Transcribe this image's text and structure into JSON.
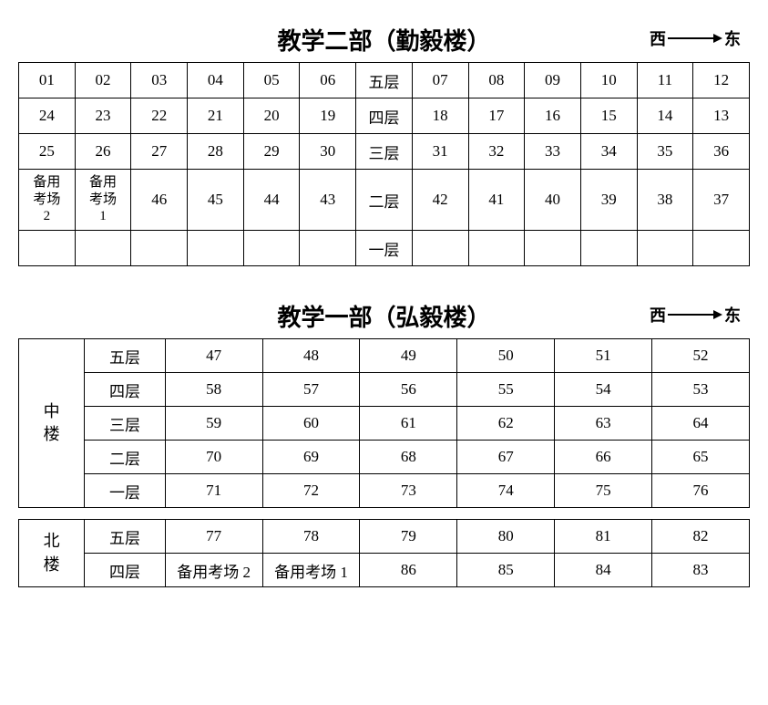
{
  "compass": {
    "west": "西",
    "east": "东"
  },
  "section1": {
    "title": "教学二部（勤毅楼）",
    "rows": [
      [
        "01",
        "02",
        "03",
        "04",
        "05",
        "06",
        "五层",
        "07",
        "08",
        "09",
        "10",
        "11",
        "12"
      ],
      [
        "24",
        "23",
        "22",
        "21",
        "20",
        "19",
        "四层",
        "18",
        "17",
        "16",
        "15",
        "14",
        "13"
      ],
      [
        "25",
        "26",
        "27",
        "28",
        "29",
        "30",
        "三层",
        "31",
        "32",
        "33",
        "34",
        "35",
        "36"
      ],
      [
        "备用考场2",
        "备用考场1",
        "46",
        "45",
        "44",
        "43",
        "二层",
        "42",
        "41",
        "40",
        "39",
        "38",
        "37"
      ],
      [
        "",
        "",
        "",
        "",
        "",
        "",
        "一层",
        "",
        "",
        "",
        "",
        "",
        ""
      ]
    ]
  },
  "section2": {
    "title": "教学一部（弘毅楼）",
    "building1": {
      "name": "中楼",
      "rows": [
        [
          "五层",
          "47",
          "48",
          "49",
          "50",
          "51",
          "52"
        ],
        [
          "四层",
          "58",
          "57",
          "56",
          "55",
          "54",
          "53"
        ],
        [
          "三层",
          "59",
          "60",
          "61",
          "62",
          "63",
          "64"
        ],
        [
          "二层",
          "70",
          "69",
          "68",
          "67",
          "66",
          "65"
        ],
        [
          "一层",
          "71",
          "72",
          "73",
          "74",
          "75",
          "76"
        ]
      ]
    },
    "building2": {
      "name": "北楼",
      "rows": [
        [
          "五层",
          "77",
          "78",
          "79",
          "80",
          "81",
          "82"
        ],
        [
          "四层",
          "备用考场 2",
          "备用考场 1",
          "86",
          "85",
          "84",
          "83"
        ]
      ]
    }
  }
}
